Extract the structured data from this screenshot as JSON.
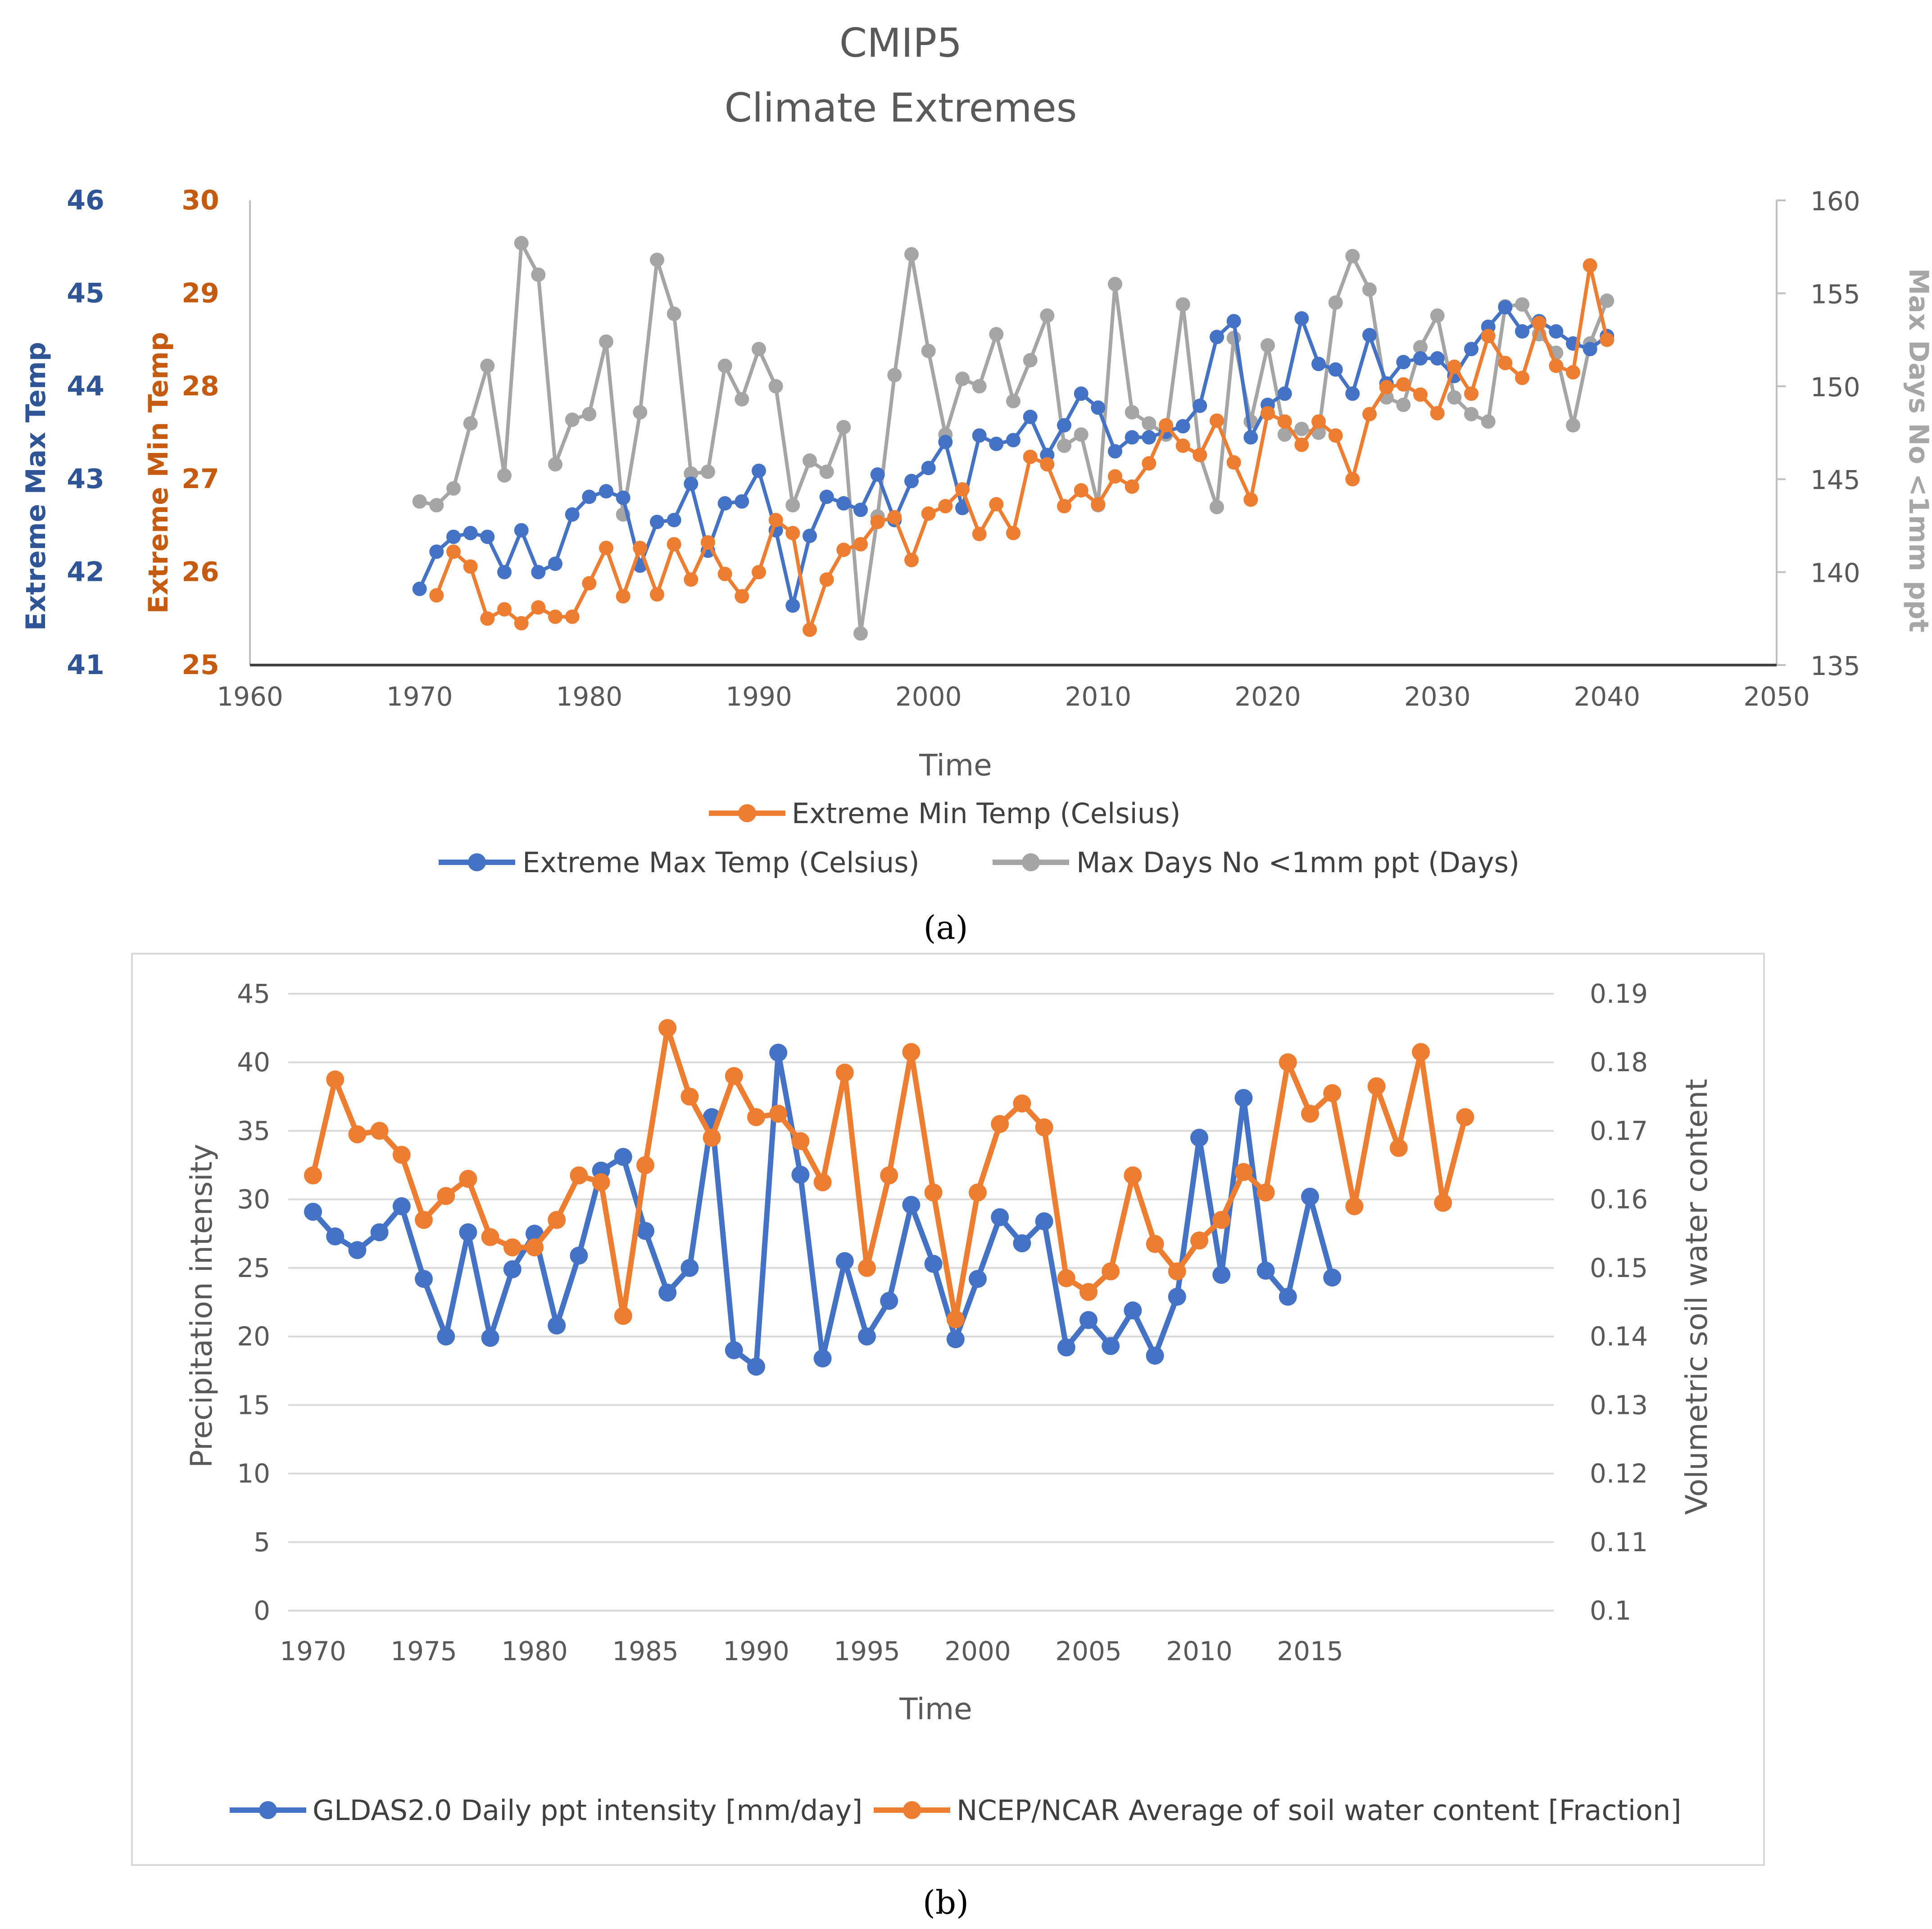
{
  "chart_data": [
    {
      "id": "a",
      "type": "line",
      "caption": "(a)",
      "title": "CMIP5",
      "subtitle": "Climate Extremes",
      "xlabel": "Time",
      "xlim": [
        1960,
        2050
      ],
      "xticks": [
        "1960",
        "1970",
        "1980",
        "1990",
        "2000",
        "2010",
        "2020",
        "2030",
        "2040",
        "2050"
      ],
      "axes": {
        "max": {
          "label": "Extreme Max Temp",
          "ylim": [
            41,
            46
          ],
          "ticks": [
            "41",
            "42",
            "43",
            "44",
            "45",
            "46"
          ],
          "color": "#2f5597"
        },
        "min": {
          "label": "Extreme Min Temp",
          "ylim": [
            25,
            30
          ],
          "ticks": [
            "25",
            "26",
            "27",
            "28",
            "29",
            "30"
          ],
          "color": "#c55a11"
        },
        "days": {
          "label": "Max Days No <1mm ppt",
          "ylim": [
            135,
            160
          ],
          "ticks": [
            "135",
            "140",
            "145",
            "150",
            "155",
            "160"
          ],
          "color": "#a6a6a6"
        }
      },
      "legend": {
        "min": "Extreme Min Temp (Celsius)",
        "max": "Extreme Max Temp (Celsius)",
        "days": "Max Days No <1mm ppt (Days)"
      },
      "series": [
        {
          "name": "Max Days No <1mm ppt (Days)",
          "axis": "days",
          "color": "#a5a5a5",
          "x_start": 1970,
          "values": [
            143.8,
            143.6,
            144.5,
            148,
            151.1,
            145.2,
            157.7,
            156.0,
            145.8,
            148.2,
            148.5,
            152.4,
            143.1,
            148.6,
            156.8,
            153.9,
            145.3,
            145.4,
            151.1,
            149.3,
            152.0,
            150.0,
            143.6,
            146.0,
            145.4,
            147.8,
            136.7,
            143.0,
            150.6,
            157.1,
            151.9,
            147.4,
            150.4,
            150.0,
            152.8,
            149.2,
            151.4,
            153.8,
            146.8,
            147.4,
            143.6,
            155.5,
            148.6,
            148.0,
            147.4,
            154.4,
            146.3,
            143.5,
            152.6,
            148.1,
            152.2,
            147.4,
            147.7,
            147.5,
            154.5,
            157.0,
            155.2,
            149.4,
            149.0,
            152.1,
            153.8,
            149.4,
            148.5,
            148.1,
            154.3,
            154.4,
            152.8,
            151.8,
            147.9,
            152.3,
            154.6
          ]
        },
        {
          "name": "Extreme Max Temp (Celsius)",
          "axis": "max",
          "color": "#4472c4",
          "x_start": 1970,
          "values": [
            41.82,
            42.22,
            42.38,
            42.42,
            42.38,
            42.0,
            42.45,
            42.0,
            42.09,
            42.62,
            42.81,
            42.87,
            42.8,
            42.07,
            42.54,
            42.56,
            42.95,
            42.23,
            42.74,
            42.76,
            43.09,
            42.45,
            41.64,
            42.39,
            42.81,
            42.74,
            42.67,
            43.05,
            42.56,
            42.98,
            43.12,
            43.4,
            42.69,
            43.47,
            43.38,
            43.42,
            43.67,
            43.26,
            43.58,
            43.92,
            43.77,
            43.3,
            43.45,
            43.45,
            43.51,
            43.57,
            43.79,
            44.53,
            44.7,
            43.45,
            43.8,
            43.92,
            44.73,
            44.24,
            44.18,
            43.92,
            44.55,
            44.03,
            44.26,
            44.3,
            44.3,
            44.11,
            44.4,
            44.64,
            44.85,
            44.59,
            44.7,
            44.59,
            44.46,
            44.4,
            44.54
          ]
        },
        {
          "name": "Extreme Min Temp (Celsius)",
          "axis": "min",
          "color": "#ed7d31",
          "x_start": 1970,
          "values": [
            null,
            25.75,
            26.22,
            26.06,
            25.5,
            25.6,
            25.45,
            25.62,
            25.52,
            25.52,
            25.88,
            26.26,
            25.74,
            26.26,
            25.76,
            26.3,
            25.92,
            26.32,
            25.98,
            25.74,
            26.0,
            26.56,
            26.42,
            25.38,
            25.92,
            26.24,
            26.3,
            26.54,
            26.59,
            26.13,
            26.63,
            26.71,
            26.89,
            26.41,
            26.73,
            26.42,
            27.24,
            27.16,
            26.71,
            26.88,
            26.73,
            27.03,
            26.92,
            27.17,
            27.58,
            27.36,
            27.26,
            27.63,
            27.18,
            26.78,
            27.71,
            27.62,
            27.37,
            27.62,
            27.47,
            27.0,
            27.7,
            27.99,
            28.02,
            27.91,
            27.71,
            28.21,
            27.92,
            28.54,
            28.25,
            28.09,
            28.68,
            28.22,
            28.15,
            29.3,
            28.5
          ]
        }
      ]
    },
    {
      "id": "b",
      "type": "line",
      "caption": "(b)",
      "xlabel": "Time",
      "xticks": [
        "1970",
        "1975",
        "1980",
        "1985",
        "1990",
        "1995",
        "2000",
        "2005",
        "2010",
        "2015"
      ],
      "y_left": {
        "label": "Precipitation intensity",
        "ylim": [
          0,
          45
        ],
        "ticks": [
          "0",
          "5",
          "10",
          "15",
          "20",
          "25",
          "30",
          "35",
          "40",
          "45"
        ]
      },
      "y_right": {
        "label": "Volumetric soil water content",
        "ylim": [
          0.1,
          0.19
        ],
        "ticks": [
          "0.1",
          "0.11",
          "0.12",
          "0.13",
          "0.14",
          "0.15",
          "0.16",
          "0.17",
          "0.18",
          "0.19"
        ]
      },
      "legend": {
        "gldas": "GLDAS2.0 Daily ppt intensity [mm/day]",
        "ncep": "NCEP/NCAR Average of soil water content [Fraction]"
      },
      "series": [
        {
          "name": "GLDAS2.0 Daily ppt intensity [mm/day]",
          "axis": "left",
          "color": "#4472c4",
          "x_start": 1970,
          "values": [
            29.1,
            27.3,
            26.3,
            27.6,
            29.5,
            24.2,
            20.0,
            27.6,
            19.9,
            24.9,
            27.5,
            20.8,
            25.9,
            32.1,
            33.1,
            27.7,
            23.2,
            25.0,
            36.0,
            19.0,
            17.8,
            40.7,
            31.8,
            18.4,
            25.5,
            20.0,
            22.6,
            29.6,
            25.3,
            19.8,
            24.2,
            28.7,
            26.8,
            28.4,
            19.2,
            21.2,
            19.3,
            21.9,
            18.6,
            22.9,
            34.5,
            24.5,
            37.4,
            24.8,
            22.9,
            30.2,
            24.3
          ]
        },
        {
          "name": "NCEP/NCAR Average of soil water content [Fraction]",
          "axis": "right",
          "color": "#ed7d31",
          "x_start": 1970,
          "values": [
            0.1635,
            0.1775,
            0.1695,
            0.17,
            0.1665,
            0.157,
            0.1605,
            0.163,
            0.1545,
            0.153,
            0.153,
            0.157,
            0.1635,
            0.1625,
            0.143,
            0.165,
            0.185,
            0.175,
            0.169,
            0.178,
            0.172,
            0.1725,
            0.1685,
            0.1625,
            0.1785,
            0.15,
            0.1635,
            0.1815,
            0.161,
            0.1425,
            0.161,
            0.171,
            0.174,
            0.1705,
            0.1485,
            0.1465,
            0.1495,
            0.1635,
            0.1535,
            0.1495,
            0.154,
            0.157,
            0.164,
            0.161,
            0.18,
            0.1725,
            0.1755,
            0.159,
            0.1765,
            0.1675,
            0.1815,
            0.1595,
            0.172
          ]
        }
      ]
    }
  ]
}
